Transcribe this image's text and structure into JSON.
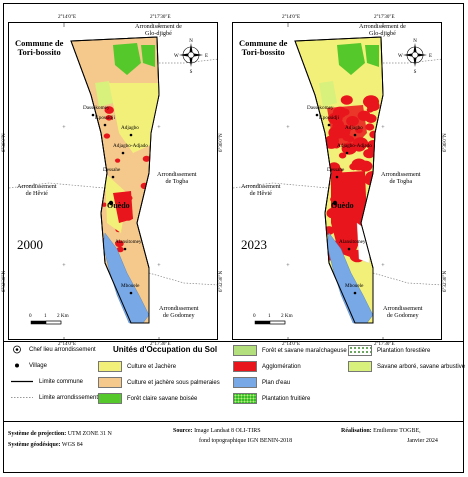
{
  "colors": {
    "culture_jachere": "#f3f07a",
    "culture_palmeraie": "#f5c98c",
    "foret_claire": "#55c82c",
    "foret_marecageuse": "#b3e07d",
    "agglomeration": "#e8161c",
    "plan_eau": "#78a8e6",
    "plantation_fruitiere": "#35bb28",
    "plantation_forestiere": "#ffffff",
    "savane_arboree": "#d8f07c"
  },
  "top_ticks": [
    "2°14'0\"E",
    "2°17'30\"E"
  ],
  "bottom_ticks": [
    "2°14'0\"E",
    "2°17'30\"E"
  ],
  "left_ticks": [
    "6°36'0\"N",
    "6°32'30\"N"
  ],
  "right_ticks": [
    "6°36'0\"N",
    "6°32'30\"N"
  ],
  "maps": [
    {
      "year": "2000",
      "commune": "Commune de\nTori-bossito",
      "arr_glo": "Arrondissement de\nGlo-djigbé",
      "arr_hevie": "Arrondissement\nde Hêvié",
      "arr_togba": "Arrondissement\nde Togba",
      "arr_godomey": "Arrondissement\nde Godomey",
      "towns": [
        "Dassekomey",
        "Kpossidji",
        "Adjagbo",
        "Adjagbo-Adjado",
        "Dessahe",
        "Ouèdo",
        "Alansitomey",
        "Mbouele"
      ],
      "scale": [
        "0",
        "1",
        "2 Km"
      ]
    },
    {
      "year": "2023",
      "commune": "Commune de\nTori-bossito",
      "arr_glo": "Arrondissement de\nGlo-djigbé",
      "arr_hevie": "Arrondissement\nde Hêvié",
      "arr_togba": "Arrondissement\nde Togba",
      "arr_godomey": "Arrondissement\nde Godomey",
      "towns": [
        "Dassekomey",
        "Kpossidji",
        "Adjagbo",
        "Adjagbo-Adjado",
        "Dessahe",
        "Ouèdo",
        "Alansitomey",
        "Mbouele"
      ],
      "scale": [
        "0",
        "1",
        "2 Km"
      ]
    }
  ],
  "legend": {
    "title": "Unités d'Occupation du Sol",
    "symbols": [
      "Chef lieu arrondissement",
      "Village",
      "Limite  commune",
      "Limite arrondissement"
    ],
    "col1": [
      "Culture et Jachère",
      "Culture et jachère sous palmeraies",
      "Forêt claire savane boisée"
    ],
    "col2": [
      "Forêt et savane maraîchageuse",
      "Agglomération",
      "Plan d'eau",
      "Plantation fruitière"
    ],
    "col3": [
      "Plantation forestière",
      "Savane arboré, savane arbustive"
    ]
  },
  "footer": {
    "proj_label": "Système de projection:",
    "proj_value": "UTM ZONE 31 N",
    "geo_label": "Système géodésique:",
    "geo_value": "WGS 84",
    "source_label": "Source:",
    "source_value": "Image Landsat 8 OLI-TIRS",
    "source_value2": "fond topographique IGN BENIN-2018",
    "real_label": "Réalisation:",
    "real_value": "Emilienne TOGBE,",
    "real_date": "Janvier 2024"
  }
}
